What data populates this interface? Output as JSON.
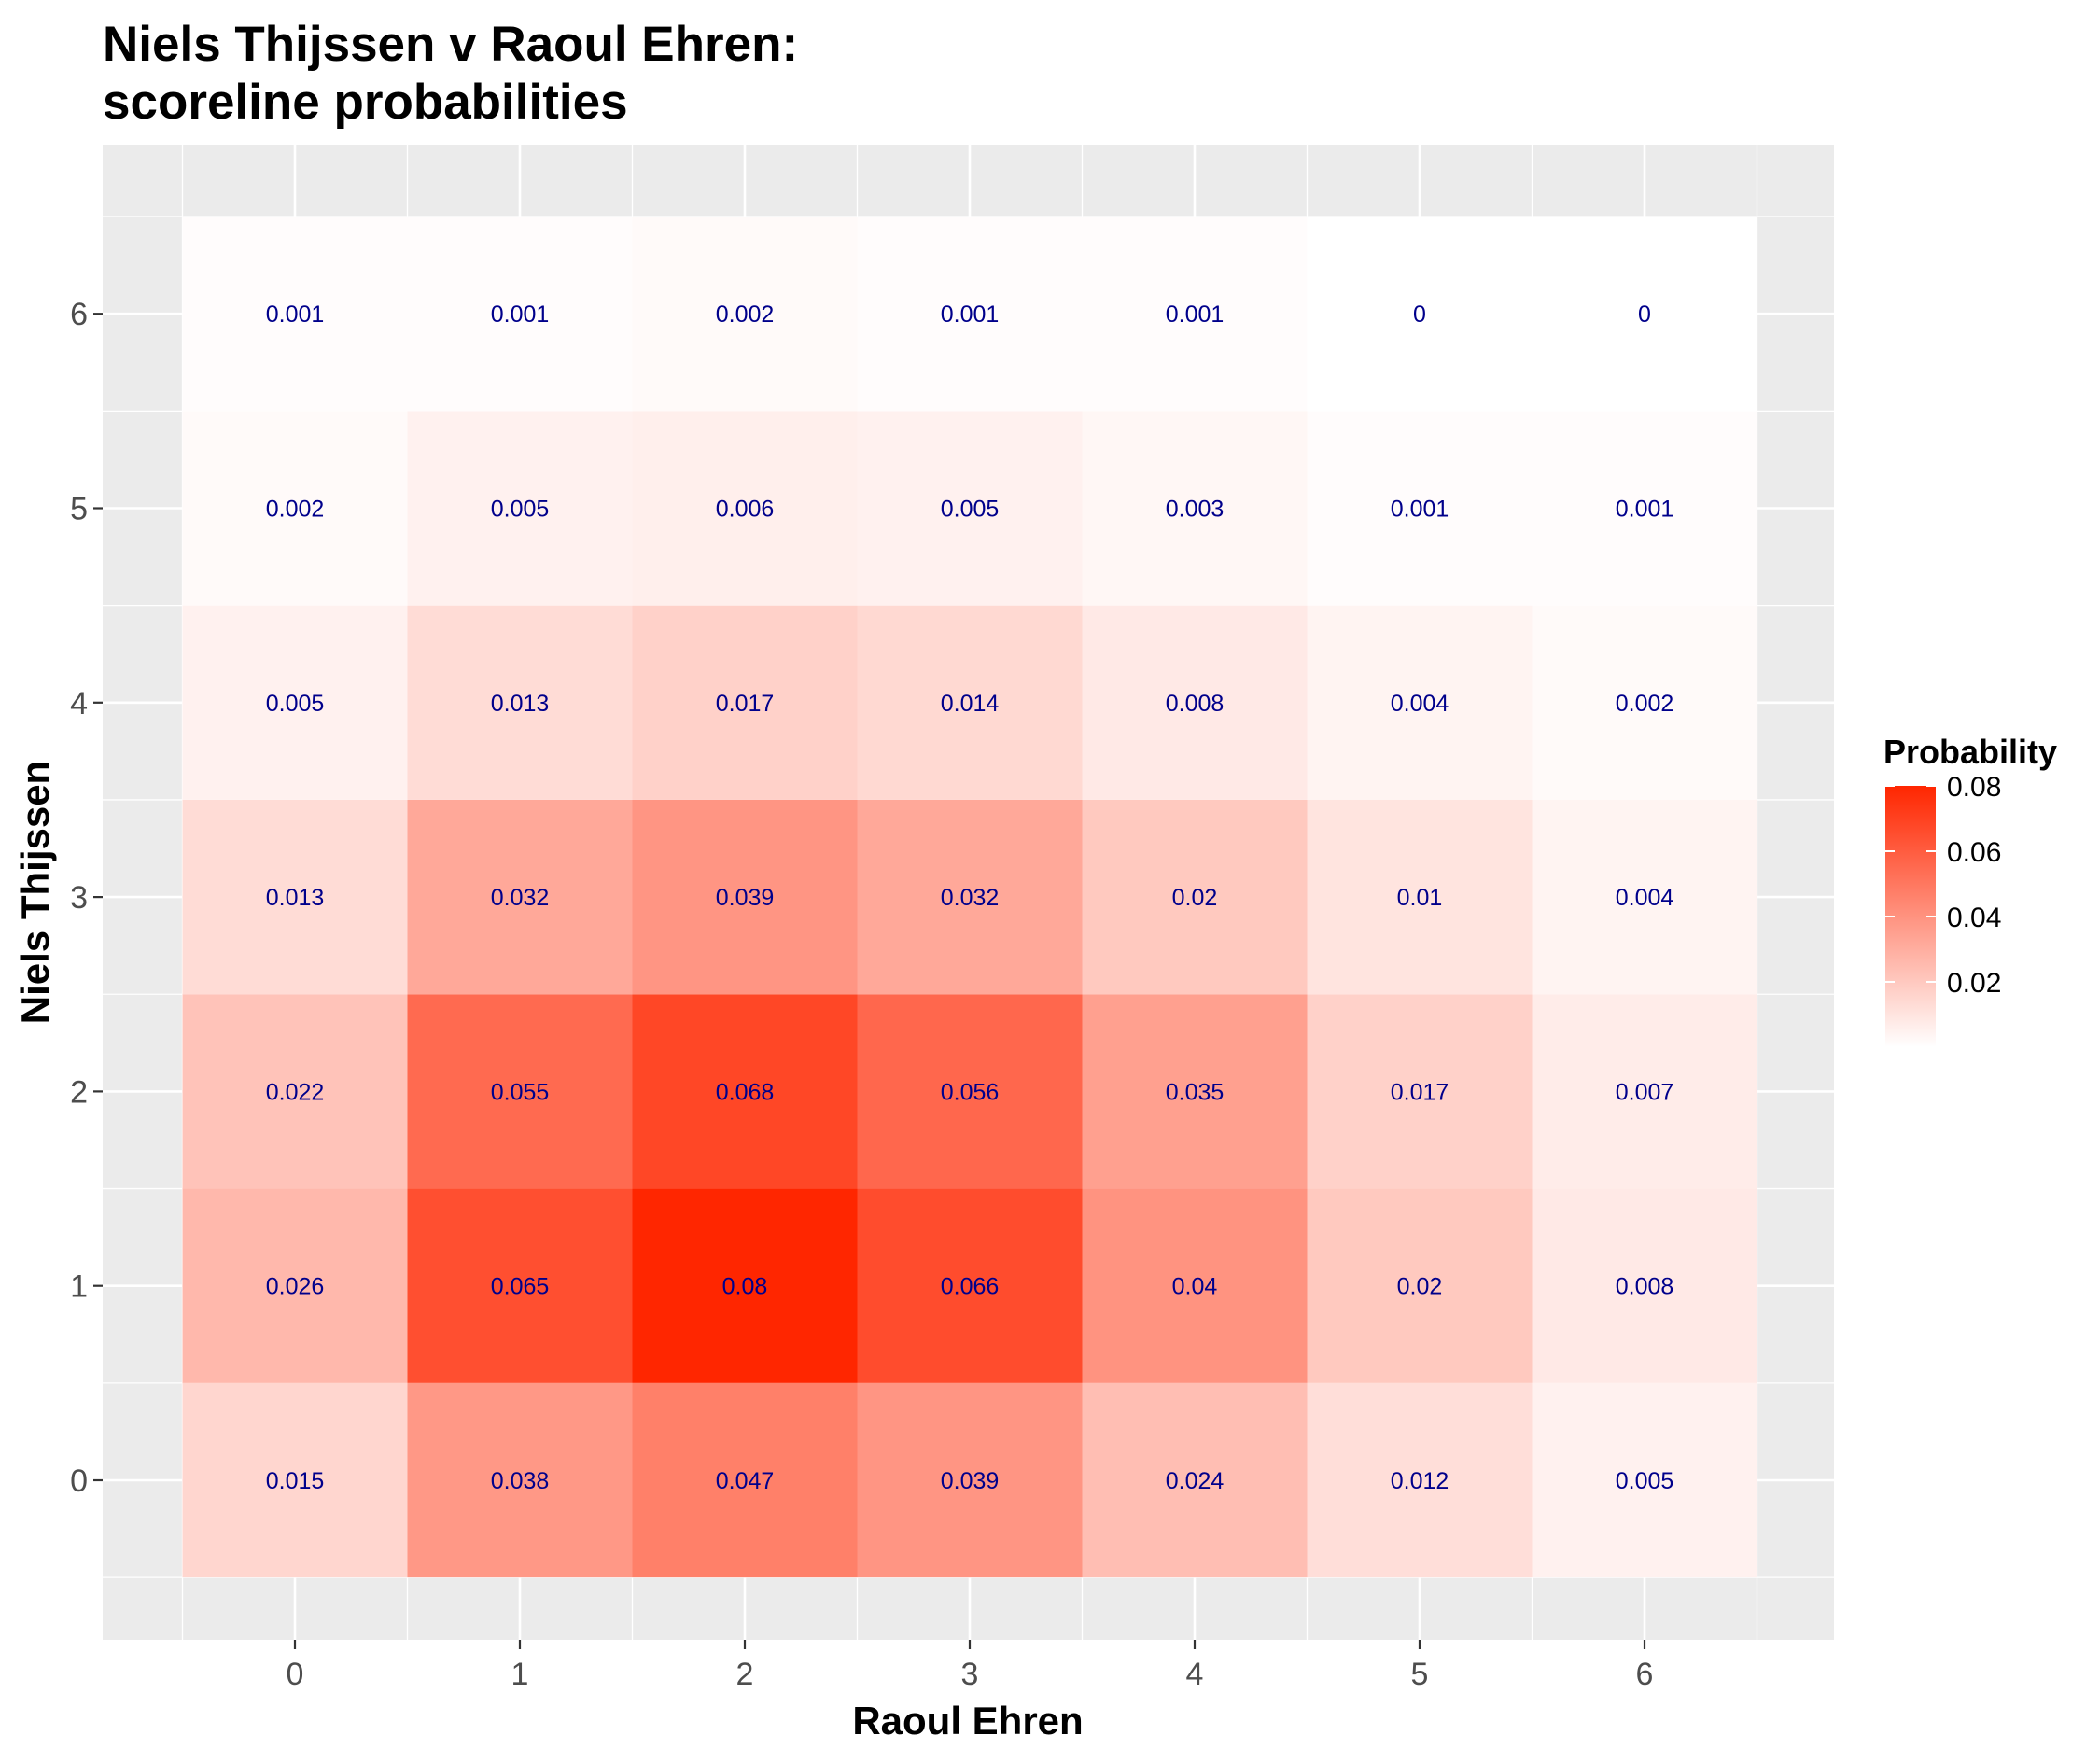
{
  "chart_data": {
    "type": "heatmap",
    "title_line1": "Niels Thijssen v Raoul Ehren:",
    "title_line2": "scoreline probabilities",
    "xlabel": "Raoul Ehren",
    "ylabel": "Niels Thijssen",
    "x_categories": [
      "0",
      "1",
      "2",
      "3",
      "4",
      "5",
      "6"
    ],
    "y_categories": [
      "0",
      "1",
      "2",
      "3",
      "4",
      "5",
      "6"
    ],
    "values": [
      [
        0.015,
        0.038,
        0.047,
        0.039,
        0.024,
        0.012,
        0.005
      ],
      [
        0.026,
        0.065,
        0.08,
        0.066,
        0.04,
        0.02,
        0.008
      ],
      [
        0.022,
        0.055,
        0.068,
        0.056,
        0.035,
        0.017,
        0.007
      ],
      [
        0.013,
        0.032,
        0.039,
        0.032,
        0.02,
        0.01,
        0.004
      ],
      [
        0.005,
        0.013,
        0.017,
        0.014,
        0.008,
        0.004,
        0.002
      ],
      [
        0.002,
        0.005,
        0.006,
        0.005,
        0.003,
        0.001,
        0.001
      ],
      [
        0.001,
        0.001,
        0.002,
        0.001,
        0.001,
        0,
        0
      ]
    ],
    "values_note": "values[row][col]; row = Niels Thijssen goals (y), col = Raoul Ehren goals (x)",
    "color_low": "#ffffff",
    "color_high": "#ff2600",
    "value_range": [
      0,
      0.08
    ],
    "legend": {
      "title": "Probability",
      "ticks": [
        0.02,
        0.04,
        0.06,
        0.08
      ],
      "tick_labels": [
        "0.02",
        "0.04",
        "0.06",
        "0.08"
      ],
      "placement": "right"
    },
    "panel_background": "#ebebeb",
    "grid_color": "#ffffff",
    "label_color": "#00008b"
  }
}
